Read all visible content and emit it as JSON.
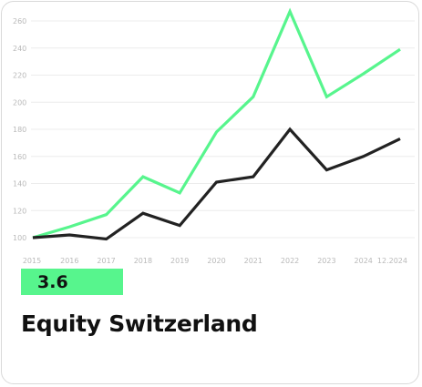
{
  "card": {
    "title": "Equity Switzerland",
    "performance": "3.6"
  },
  "chart_data": {
    "type": "line",
    "x": [
      "2015",
      "2016",
      "2017",
      "2018",
      "2019",
      "2020",
      "2021",
      "2022",
      "2023",
      "2024",
      "12.2024"
    ],
    "yticks": [
      100,
      120,
      140,
      160,
      180,
      200,
      220,
      240,
      260
    ],
    "ylim": [
      95,
      270
    ],
    "grid": true,
    "series": [
      {
        "color": "#57f58d",
        "values": [
          100,
          108,
          117,
          145,
          133,
          178,
          204,
          267,
          204,
          221,
          239
        ]
      },
      {
        "color": "#222222",
        "values": [
          100,
          102,
          99,
          118,
          109,
          141,
          145,
          180,
          150,
          160,
          173
        ]
      }
    ]
  }
}
